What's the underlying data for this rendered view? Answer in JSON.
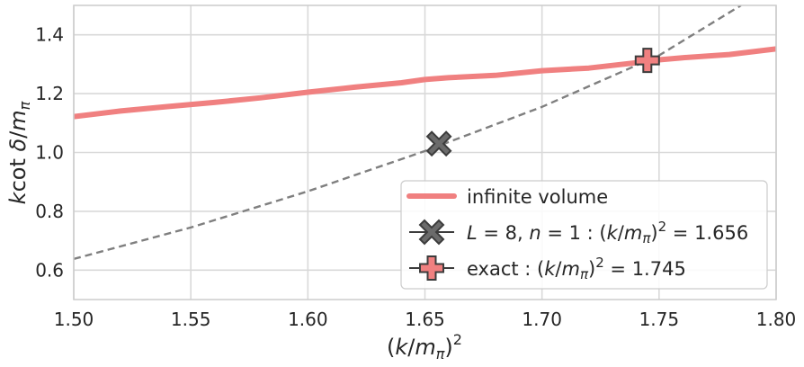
{
  "chart_data": {
    "type": "line",
    "xlabel": "(k/m_π)^2",
    "ylabel": "k cot δ/m_π",
    "xlim": [
      1.5,
      1.8
    ],
    "ylim": [
      0.5,
      1.5
    ],
    "xticks": [
      "1.50",
      "1.55",
      "1.60",
      "1.65",
      "1.70",
      "1.75",
      "1.80"
    ],
    "yticks": [
      "0.6",
      "0.8",
      "1.0",
      "1.2",
      "1.4"
    ],
    "grid": true,
    "legend_position": "lower-right",
    "colors": {
      "infinite": "#f08080",
      "dashed": "#7f7f7f",
      "marker_fill_x": "#6b6b6b",
      "marker_fill_plus": "#f08080",
      "marker_edge": "#3c3c3c",
      "grid": "#d9d9d9",
      "spine": "#cccccc"
    },
    "series": [
      {
        "name": "infinite volume",
        "style": "solid",
        "x": [
          1.5,
          1.52,
          1.54,
          1.56,
          1.58,
          1.6,
          1.62,
          1.64,
          1.65,
          1.66,
          1.68,
          1.7,
          1.72,
          1.74,
          1.75,
          1.76,
          1.78,
          1.8
        ],
        "y": [
          1.122,
          1.141,
          1.156,
          1.17,
          1.186,
          1.205,
          1.222,
          1.237,
          1.248,
          1.254,
          1.262,
          1.278,
          1.287,
          1.305,
          1.315,
          1.322,
          1.333,
          1.352
        ]
      },
      {
        "style": "dashed",
        "x": [
          1.5,
          1.55,
          1.6,
          1.65,
          1.7,
          1.75,
          1.785
        ],
        "y": [
          0.638,
          0.745,
          0.868,
          1.005,
          1.155,
          1.33,
          1.5
        ]
      }
    ],
    "markers": [
      {
        "label_lhs": "L = 8, n = 1",
        "label_rhs": "(k/m_π)^2 = 1.656",
        "shape": "x",
        "x": 1.656,
        "y": 1.03
      },
      {
        "label_lhs": "exact",
        "label_rhs": "(k/m_π)^2 = 1.745",
        "shape": "plus",
        "x": 1.745,
        "y": 1.313
      }
    ]
  }
}
